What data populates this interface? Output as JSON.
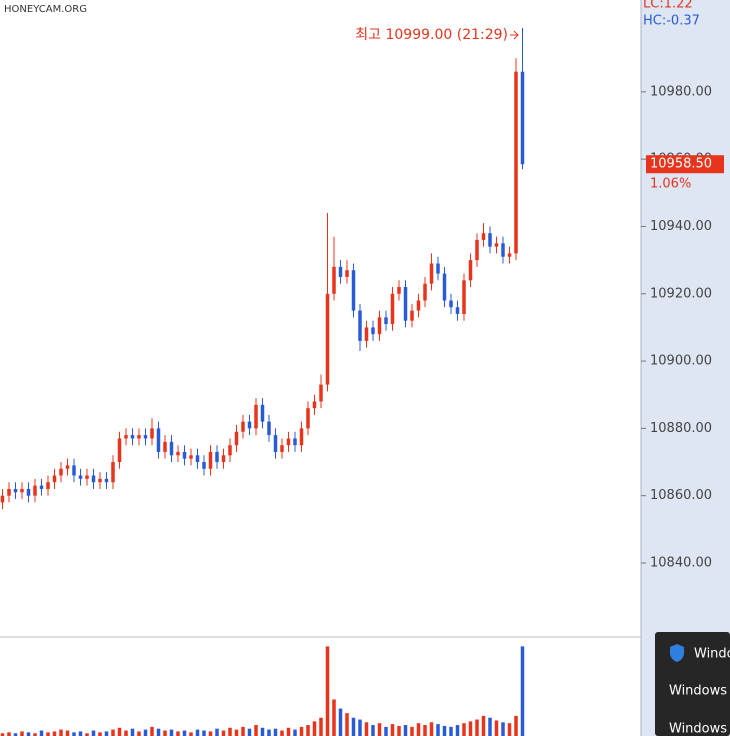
{
  "chart_data": {
    "type": "candlestick",
    "watermark": "HONEYCAM.ORG",
    "stats": [
      "LC:1.22",
      "HC:-0.37"
    ],
    "annotation": "최고 10999.00 (21:29)",
    "last_label": {
      "value": 10958.5,
      "label": "10958.50"
    },
    "change_label": "1.06%",
    "up_color": "#e8341c",
    "down_color": "#2a5bd7",
    "ylim": [
      10818.3,
      11007.3
    ],
    "yticks": [
      {
        "value": 10840,
        "label": "10840.00"
      },
      {
        "value": 10860,
        "label": "10860.00"
      },
      {
        "value": 10880,
        "label": "10880.00"
      },
      {
        "value": 10900,
        "label": "10900.00"
      },
      {
        "value": 10920,
        "label": "10920.00"
      },
      {
        "value": 10940,
        "label": "10940.00"
      },
      {
        "value": 10960,
        "label": "10960.00"
      },
      {
        "value": 10980,
        "label": "10980.00"
      }
    ],
    "open": [
      10858,
      10860,
      10862,
      10861,
      10862,
      10860,
      10863,
      10862,
      10864,
      10866,
      10868,
      10869,
      10866,
      10865,
      10866,
      10864,
      10865,
      10864,
      10870,
      10877,
      10878,
      10877,
      10878,
      10877,
      10880,
      10873,
      10876,
      10872,
      10873,
      10871,
      10872,
      10870,
      10868,
      10873,
      10870,
      10872,
      10875,
      10879,
      10882,
      10880,
      10887,
      10882,
      10878,
      10873,
      10875,
      10877,
      10875,
      10880,
      10886,
      10888,
      10893,
      10920,
      10928,
      10925,
      10927,
      10915,
      10906,
      10910,
      10908,
      10913,
      10911,
      10920,
      10922,
      10912,
      10915,
      10918,
      10923,
      10929,
      10926,
      10918,
      10916,
      10914,
      10924,
      10930,
      10936,
      10938,
      10934,
      10935,
      10931,
      10932,
      10986
    ],
    "high": [
      10862,
      10864,
      10864,
      10864,
      10864,
      10865,
      10865,
      10866,
      10868,
      10870,
      10871,
      10871,
      10868,
      10868,
      10868,
      10867,
      10867,
      10872,
      10879,
      10880,
      10880,
      10880,
      10880,
      10883,
      10882,
      10878,
      10878,
      10875,
      10875,
      10874,
      10874,
      10872,
      10875,
      10875,
      10874,
      10877,
      10881,
      10884,
      10884,
      10889,
      10889,
      10884,
      10880,
      10877,
      10879,
      10879,
      10882,
      10888,
      10890,
      10896,
      10944,
      10937,
      10930,
      10930,
      10929,
      10917,
      10912,
      10912,
      10915,
      10915,
      10922,
      10924,
      10924,
      10917,
      10920,
      10925,
      10932,
      10931,
      10928,
      10920,
      10918,
      10926,
      10932,
      10938,
      10941,
      10940,
      10937,
      10937,
      10934,
      10990,
      10999
    ],
    "low": [
      10856,
      10858,
      10859,
      10859,
      10858,
      10858,
      10860,
      10860,
      10862,
      10864,
      10866,
      10864,
      10863,
      10863,
      10862,
      10862,
      10862,
      10862,
      10868,
      10875,
      10875,
      10875,
      10875,
      10875,
      10871,
      10871,
      10870,
      10870,
      10869,
      10869,
      10868,
      10866,
      10866,
      10868,
      10868,
      10870,
      10873,
      10877,
      10878,
      10878,
      10880,
      10876,
      10871,
      10871,
      10873,
      10873,
      10873,
      10878,
      10884,
      10886,
      10891,
      10918,
      10923,
      10923,
      10913,
      10903,
      10904,
      10906,
      10906,
      10909,
      10909,
      10918,
      10910,
      10910,
      10913,
      10916,
      10921,
      10924,
      10916,
      10914,
      10912,
      10912,
      10922,
      10928,
      10934,
      10932,
      10932,
      10929,
      10929,
      10930,
      10957
    ],
    "close": [
      10860,
      10862,
      10861,
      10862,
      10860,
      10863,
      10862,
      10864,
      10866,
      10868,
      10869,
      10866,
      10865,
      10866,
      10864,
      10865,
      10864,
      10870,
      10877,
      10878,
      10877,
      10878,
      10877,
      10880,
      10873,
      10876,
      10872,
      10873,
      10871,
      10872,
      10870,
      10868,
      10873,
      10870,
      10872,
      10875,
      10879,
      10882,
      10880,
      10887,
      10882,
      10878,
      10873,
      10875,
      10877,
      10875,
      10880,
      10886,
      10888,
      10893,
      10920,
      10928,
      10925,
      10927,
      10915,
      10906,
      10910,
      10908,
      10913,
      10911,
      10920,
      10922,
      10912,
      10915,
      10918,
      10923,
      10929,
      10926,
      10918,
      10916,
      10914,
      10924,
      10930,
      10936,
      10938,
      10934,
      10935,
      10931,
      10932,
      10986,
      10958.5
    ],
    "volume": [
      3,
      4,
      3,
      5,
      4,
      3,
      6,
      4,
      5,
      7,
      6,
      4,
      5,
      3,
      6,
      4,
      5,
      7,
      9,
      6,
      8,
      5,
      7,
      10,
      8,
      6,
      7,
      5,
      6,
      4,
      7,
      6,
      5,
      8,
      6,
      9,
      7,
      10,
      8,
      12,
      9,
      7,
      8,
      6,
      9,
      7,
      10,
      12,
      16,
      20,
      98,
      40,
      30,
      25,
      20,
      18,
      15,
      12,
      14,
      10,
      13,
      11,
      12,
      10,
      14,
      12,
      15,
      13,
      11,
      10,
      12,
      14,
      16,
      18,
      22,
      20,
      17,
      15,
      14,
      22,
      98
    ],
    "volume_ylim": [
      0,
      105
    ],
    "notifications": [
      "Windo",
      "Windows 보",
      "Windows"
    ]
  }
}
